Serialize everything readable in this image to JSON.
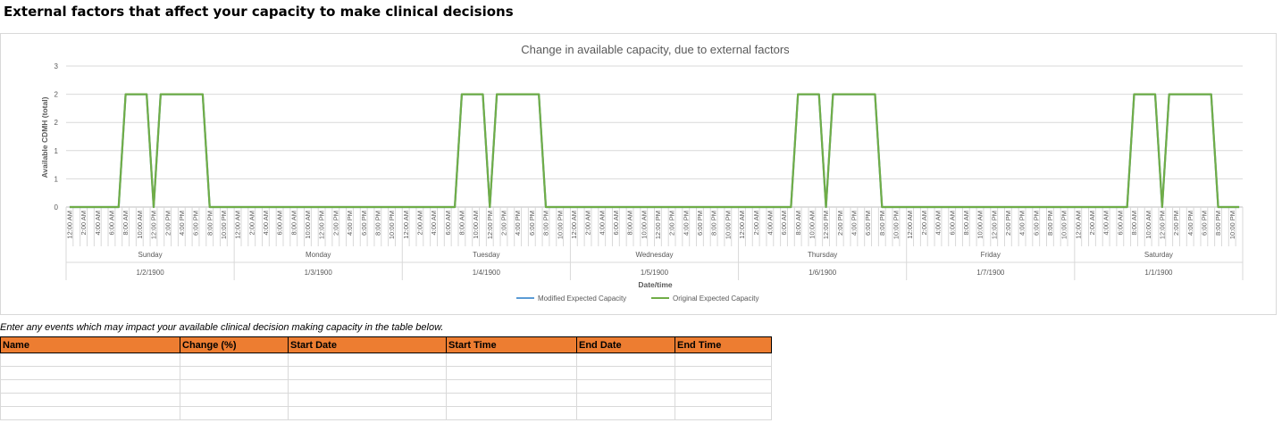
{
  "page_title": "External factors that affect your capacity to make clinical decisions",
  "instructions": "Enter any events which may impact your available clinical decision making capacity in the table below.",
  "table": {
    "columns": [
      "Name",
      "Change (%)",
      "Start Date",
      "Start Time",
      "End Date",
      "End Time"
    ],
    "rows": [
      [
        "",
        "",
        "",
        "",
        "",
        ""
      ],
      [
        "",
        "",
        "",
        "",
        "",
        ""
      ],
      [
        "",
        "",
        "",
        "",
        "",
        ""
      ],
      [
        "",
        "",
        "",
        "",
        "",
        ""
      ],
      [
        "",
        "",
        "",
        "",
        "",
        ""
      ]
    ]
  },
  "chart_data": {
    "type": "line",
    "title": "Change in available capacity, due to external factors",
    "xlabel": "Date/time",
    "ylabel": "Available CDMH (total)",
    "y_tick_labels": [
      "0",
      "1",
      "1",
      "2",
      "2",
      "3"
    ],
    "ylim": [
      0,
      2.5
    ],
    "grid": true,
    "legend": "bottom",
    "time_tick_labels": [
      "12:00 AM",
      "2:00 AM",
      "4:00 AM",
      "6:00 AM",
      "8:00 AM",
      "10:00 AM",
      "12:00 PM",
      "2:00 PM",
      "4:00 PM",
      "6:00 PM",
      "8:00 PM",
      "10:00 PM"
    ],
    "days": [
      {
        "name": "Sunday",
        "date": "1/2/1900",
        "values": [
          0,
          0,
          0,
          0,
          0,
          0,
          0,
          0,
          2,
          2,
          2,
          2,
          0,
          2,
          2,
          2,
          2,
          2,
          2,
          2,
          0,
          0,
          0,
          0
        ]
      },
      {
        "name": "Monday",
        "date": "1/3/1900",
        "values": [
          0,
          0,
          0,
          0,
          0,
          0,
          0,
          0,
          0,
          0,
          0,
          0,
          0,
          0,
          0,
          0,
          0,
          0,
          0,
          0,
          0,
          0,
          0,
          0
        ]
      },
      {
        "name": "Tuesday",
        "date": "1/4/1900",
        "values": [
          0,
          0,
          0,
          0,
          0,
          0,
          0,
          0,
          2,
          2,
          2,
          2,
          0,
          2,
          2,
          2,
          2,
          2,
          2,
          2,
          0,
          0,
          0,
          0
        ]
      },
      {
        "name": "Wednesday",
        "date": "1/5/1900",
        "values": [
          0,
          0,
          0,
          0,
          0,
          0,
          0,
          0,
          0,
          0,
          0,
          0,
          0,
          0,
          0,
          0,
          0,
          0,
          0,
          0,
          0,
          0,
          0,
          0
        ]
      },
      {
        "name": "Thursday",
        "date": "1/6/1900",
        "values": [
          0,
          0,
          0,
          0,
          0,
          0,
          0,
          0,
          2,
          2,
          2,
          2,
          0,
          2,
          2,
          2,
          2,
          2,
          2,
          2,
          0,
          0,
          0,
          0
        ]
      },
      {
        "name": "Friday",
        "date": "1/7/1900",
        "values": [
          0,
          0,
          0,
          0,
          0,
          0,
          0,
          0,
          0,
          0,
          0,
          0,
          0,
          0,
          0,
          0,
          0,
          0,
          0,
          0,
          0,
          0,
          0,
          0
        ]
      },
      {
        "name": "Saturday",
        "date": "1/1/1900",
        "values": [
          0,
          0,
          0,
          0,
          0,
          0,
          0,
          0,
          2,
          2,
          2,
          2,
          0,
          2,
          2,
          2,
          2,
          2,
          2,
          2,
          0,
          0,
          0,
          0
        ]
      }
    ],
    "series": [
      {
        "name": "Modified Expected Capacity",
        "color": "#5b9bd5"
      },
      {
        "name": "Original Expected Capacity",
        "color": "#70ad47"
      }
    ]
  }
}
